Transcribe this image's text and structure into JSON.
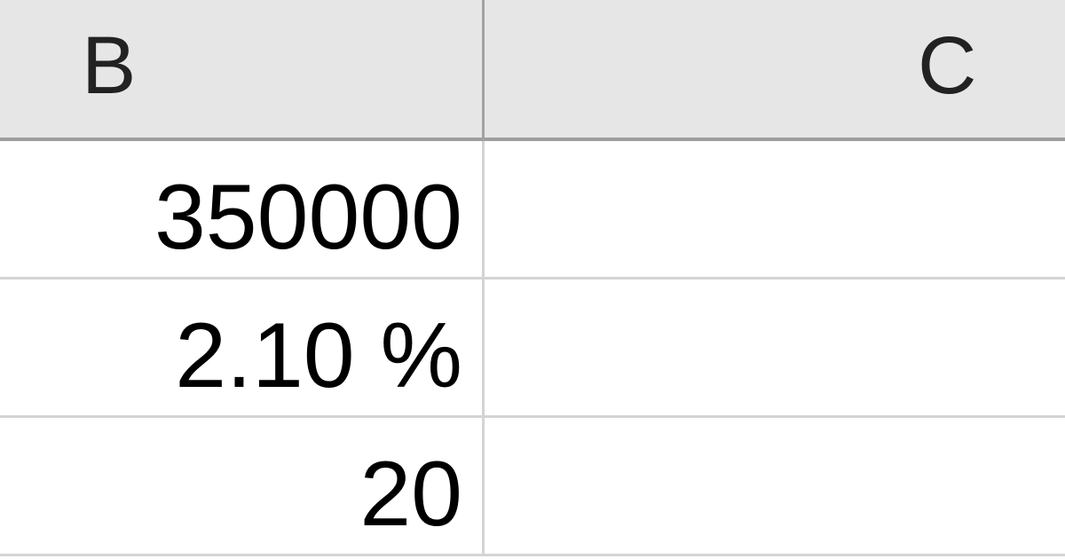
{
  "columns": [
    "B",
    "C"
  ],
  "rows": [
    {
      "B": "350000",
      "C": ""
    },
    {
      "B": "2.10 %",
      "C": ""
    },
    {
      "B": "20",
      "C": ""
    }
  ]
}
